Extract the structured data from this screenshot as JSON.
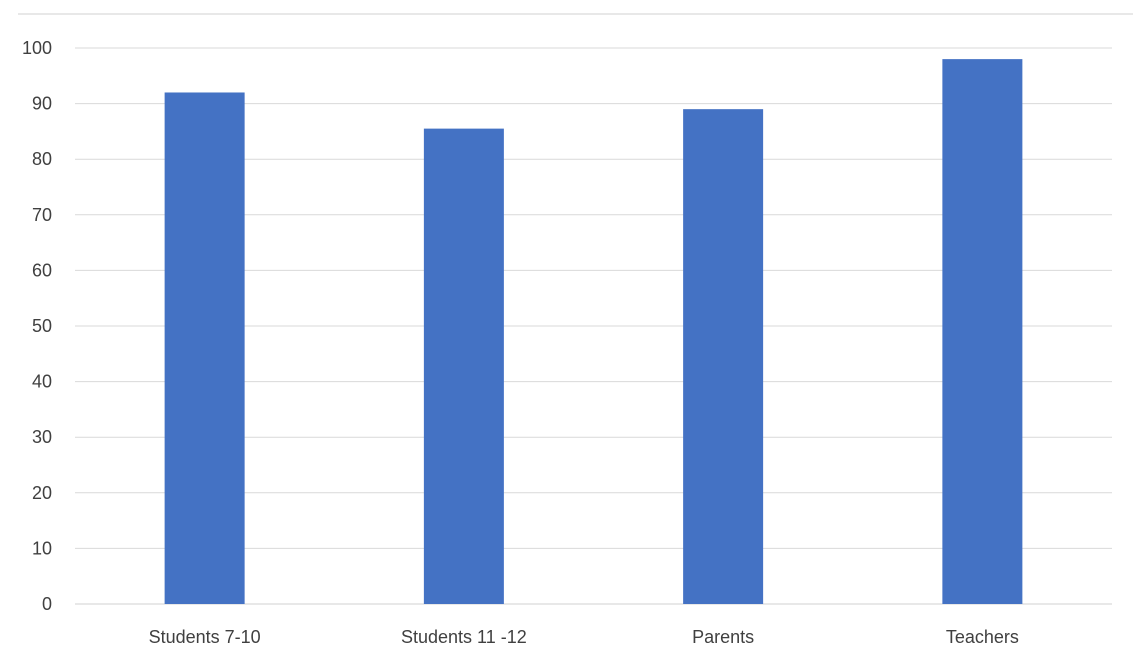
{
  "chart_data": {
    "type": "bar",
    "categories": [
      "Students 7-10",
      "Students 11 -12",
      "Parents",
      "Teachers"
    ],
    "series": [
      {
        "values": [
          92,
          85.5,
          89,
          98
        ],
        "color": "#4472c4"
      }
    ],
    "ylim": [
      0,
      100
    ],
    "ytick_step": 10,
    "grid": true,
    "legend": "none",
    "title": "",
    "xlabel": "",
    "ylabel": ""
  }
}
